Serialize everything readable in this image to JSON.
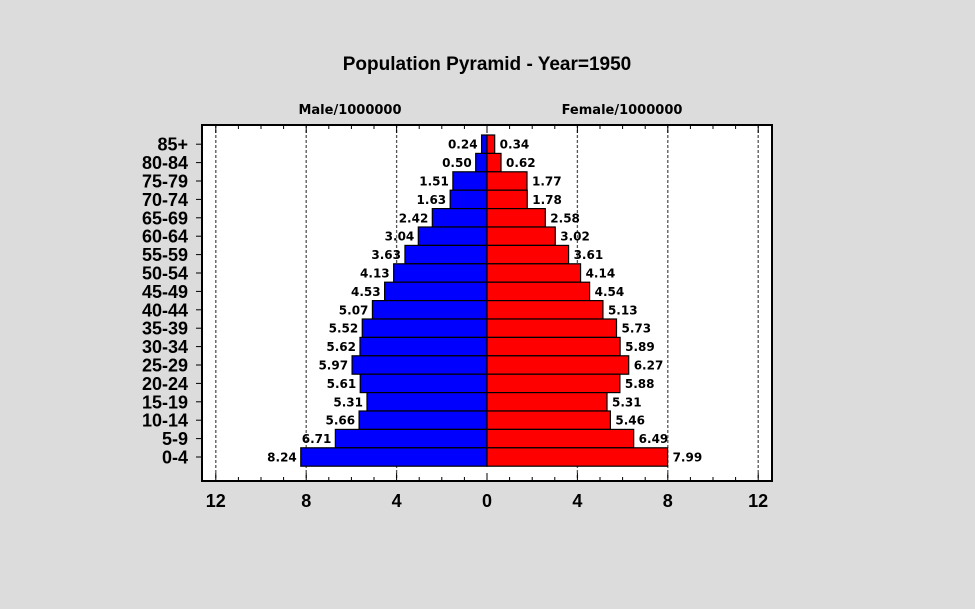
{
  "chart_data": {
    "type": "bar",
    "orientation": "horizontal-pyramid",
    "title": "Population Pyramid - Year=1950",
    "left_label": "Male/1000000",
    "right_label": "Female/1000000",
    "categories": [
      "85+",
      "80-84",
      "75-79",
      "70-74",
      "65-69",
      "60-64",
      "55-59",
      "50-54",
      "45-49",
      "40-44",
      "35-39",
      "30-34",
      "25-29",
      "20-24",
      "15-19",
      "10-14",
      "5-9",
      "0-4"
    ],
    "series": [
      {
        "name": "Male/1000000",
        "color": "#0000ff",
        "values": [
          0.24,
          0.5,
          1.51,
          1.63,
          2.42,
          3.04,
          3.63,
          4.13,
          4.53,
          5.07,
          5.52,
          5.62,
          5.97,
          5.61,
          5.31,
          5.66,
          6.71,
          8.24
        ]
      },
      {
        "name": "Female/1000000",
        "color": "#ff0000",
        "values": [
          0.34,
          0.62,
          1.77,
          1.78,
          2.58,
          3.02,
          3.61,
          4.14,
          4.54,
          5.13,
          5.73,
          5.89,
          6.27,
          5.88,
          5.31,
          5.46,
          6.49,
          7.99
        ]
      }
    ],
    "data_labels": {
      "male": [
        "0.24",
        "0.50",
        "1.51",
        "1.63",
        "2.42",
        "3.04",
        "3.63",
        "4.13",
        "4.53",
        "5.07",
        "5.52",
        "5.62",
        "5.97",
        "5.61",
        "5.31",
        "5.66",
        "6.71",
        "8.24"
      ],
      "female": [
        "0.34",
        "0.62",
        "1.77",
        "1.78",
        "2.58",
        "3.02",
        "3.61",
        "4.14",
        "4.54",
        "5.13",
        "5.73",
        "5.89",
        "6.27",
        "5.88",
        "5.31",
        "5.46",
        "6.49",
        "7.99"
      ]
    },
    "xlim": [
      -12.6,
      12.6
    ],
    "xticks": [
      -12,
      -8,
      -4,
      0,
      4,
      8,
      12
    ],
    "xtick_labels": [
      "12",
      "8",
      "4",
      "0",
      "4",
      "8",
      "12"
    ],
    "grid": true,
    "grid_style": "dashed vertical",
    "background": "#ffffff",
    "page_background": "#dcdcdc"
  }
}
